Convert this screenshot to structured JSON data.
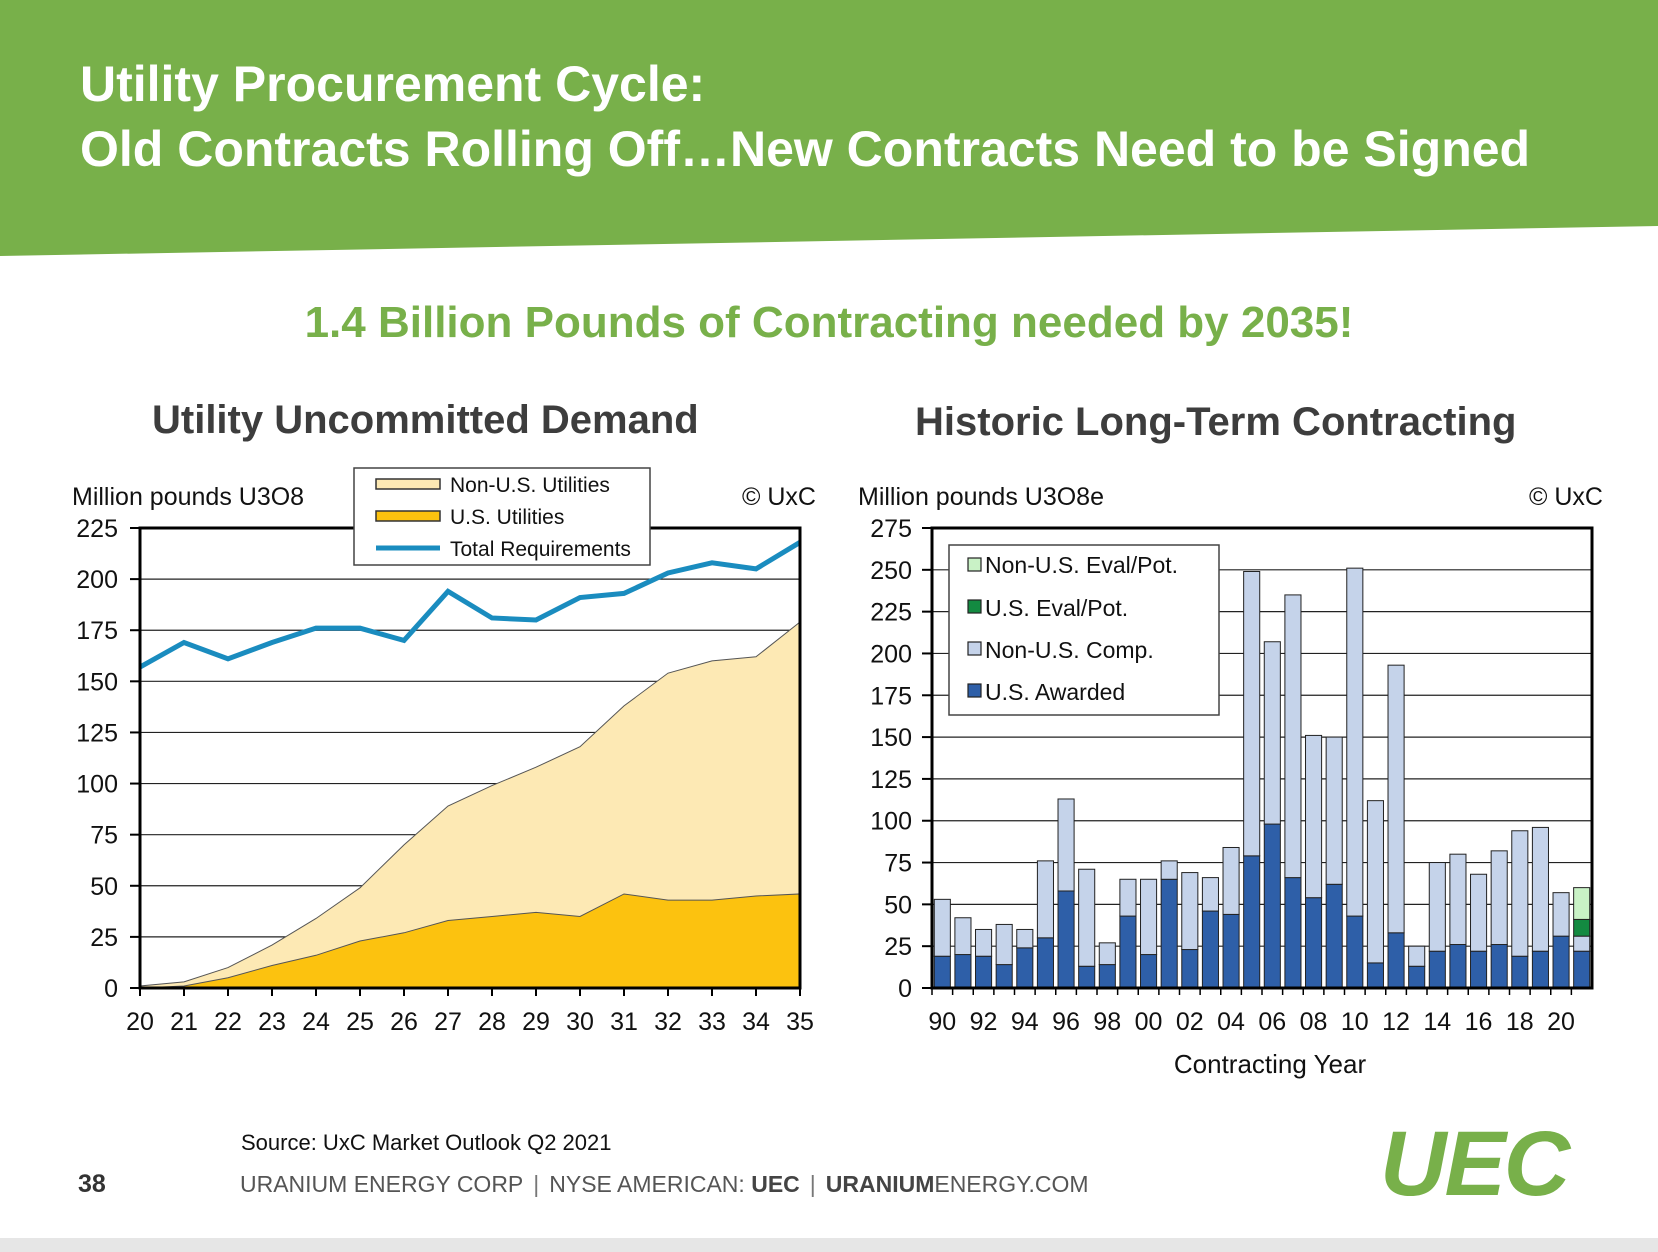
{
  "header": {
    "title_line1": "Utility Procurement Cycle:",
    "title_line2": "Old Contracts Rolling Off…New Contracts Need to be Signed",
    "band_color": "#78b04a"
  },
  "headline": "1.4 Billion Pounds of Contracting needed by 2035!",
  "chart_data": [
    {
      "type": "area",
      "heading": "Utility Uncommitted Demand",
      "unit_label": "Million pounds U3O8",
      "copyright": "© UxC",
      "x": [
        "20",
        "21",
        "22",
        "23",
        "24",
        "25",
        "26",
        "27",
        "28",
        "29",
        "30",
        "31",
        "32",
        "33",
        "34",
        "35"
      ],
      "ylim": [
        0,
        225
      ],
      "yticks": [
        "0",
        "25",
        "50",
        "75",
        "100",
        "125",
        "150",
        "175",
        "200",
        "225"
      ],
      "grid": true,
      "legend_position": "top-center",
      "series": [
        {
          "name": "Non-U.S. Utilities",
          "kind": "area-stacked",
          "color": "#fde9b4",
          "values": [
            1,
            2,
            5,
            10,
            18,
            26,
            43,
            56,
            64,
            71,
            83,
            92,
            111,
            117,
            117,
            133
          ]
        },
        {
          "name": "U.S. Utilities",
          "kind": "area-stacked",
          "color": "#fcc20f",
          "values": [
            0,
            1,
            5,
            11,
            16,
            23,
            27,
            33,
            35,
            37,
            35,
            46,
            43,
            43,
            45,
            46
          ]
        },
        {
          "name": "Total Requirements",
          "kind": "line",
          "color": "#1a8cbf",
          "values": [
            157,
            169,
            161,
            169,
            176,
            176,
            170,
            194,
            181,
            180,
            191,
            193,
            203,
            208,
            205,
            218
          ]
        }
      ]
    },
    {
      "type": "bar",
      "heading": "Historic Long-Term Contracting",
      "unit_label": "Million pounds U3O8e",
      "copyright": "© UxC",
      "xlabel": "Contracting Year",
      "categories": [
        "90",
        "91",
        "92",
        "93",
        "94",
        "95",
        "96",
        "97",
        "98",
        "99",
        "00",
        "01",
        "02",
        "03",
        "04",
        "05",
        "06",
        "07",
        "08",
        "09",
        "10",
        "11",
        "12",
        "13",
        "14",
        "15",
        "16",
        "17",
        "18",
        "19",
        "20",
        "21"
      ],
      "xtick_labels": [
        "90",
        "92",
        "94",
        "96",
        "98",
        "00",
        "02",
        "04",
        "06",
        "08",
        "10",
        "12",
        "14",
        "16",
        "18",
        "20"
      ],
      "ylim": [
        0,
        275
      ],
      "yticks": [
        "0",
        "25",
        "50",
        "75",
        "100",
        "125",
        "150",
        "175",
        "200",
        "225",
        "250",
        "275"
      ],
      "grid": true,
      "legend_position": "top-left",
      "stacked": true,
      "series": [
        {
          "name": "U.S. Awarded",
          "color": "#2e5fa8",
          "values": [
            19,
            20,
            19,
            14,
            24,
            30,
            58,
            13,
            14,
            43,
            20,
            65,
            23,
            46,
            44,
            79,
            98,
            66,
            54,
            62,
            43,
            15,
            33,
            13,
            22,
            26,
            22,
            26,
            19,
            22,
            31,
            22
          ]
        },
        {
          "name": "Non-U.S. Comp.",
          "color": "#c5d3ea",
          "values": [
            34,
            22,
            16,
            24,
            11,
            46,
            55,
            58,
            13,
            22,
            45,
            11,
            46,
            20,
            40,
            170,
            109,
            169,
            97,
            88,
            208,
            97,
            160,
            12,
            53,
            54,
            46,
            56,
            75,
            74,
            26,
            9
          ]
        },
        {
          "name": "U.S. Eval/Pot.",
          "color": "#138a41",
          "values": [
            0,
            0,
            0,
            0,
            0,
            0,
            0,
            0,
            0,
            0,
            0,
            0,
            0,
            0,
            0,
            0,
            0,
            0,
            0,
            0,
            0,
            0,
            0,
            0,
            0,
            0,
            0,
            0,
            0,
            0,
            0,
            10
          ]
        },
        {
          "name": "Non-U.S. Eval/Pot.",
          "color": "#c9f2c6",
          "values": [
            0,
            0,
            0,
            0,
            0,
            0,
            0,
            0,
            0,
            0,
            0,
            0,
            0,
            0,
            0,
            0,
            0,
            0,
            0,
            0,
            0,
            0,
            0,
            0,
            0,
            0,
            0,
            0,
            0,
            0,
            0,
            19
          ]
        }
      ]
    }
  ],
  "footer": {
    "source": "Source: UxC Market Outlook Q2 2021",
    "page_number": "38",
    "company": "URANIUM ENERGY CORP",
    "separator": "|",
    "exchange_prefix": "NYSE AMERICAN:",
    "ticker": "UEC",
    "website_bold": "URANIUM",
    "website_rest": "ENERGY.COM",
    "logo_text": "UEC"
  }
}
